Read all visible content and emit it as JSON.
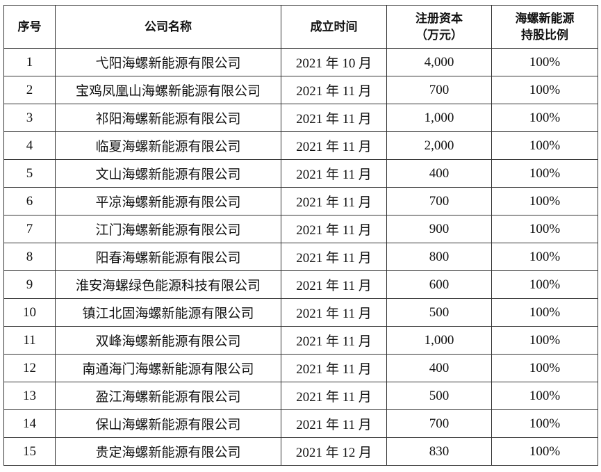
{
  "headers": [
    "序号",
    "公司名称",
    "成立时间",
    "注册资本\n（万元）",
    "海螺新能源\n持股比例"
  ],
  "rows": [
    [
      "1",
      "弋阳海螺新能源有限公司",
      "2021 年 10 月",
      "4,000",
      "100%"
    ],
    [
      "2",
      "宝鸡凤凰山海螺新能源有限公司",
      "2021 年 11 月",
      "700",
      "100%"
    ],
    [
      "3",
      "祁阳海螺新能源有限公司",
      "2021 年 11 月",
      "1,000",
      "100%"
    ],
    [
      "4",
      "临夏海螺新能源有限公司",
      "2021 年 11 月",
      "2,000",
      "100%"
    ],
    [
      "5",
      "文山海螺新能源有限公司",
      "2021 年 11 月",
      "400",
      "100%"
    ],
    [
      "6",
      "平凉海螺新能源有限公司",
      "2021 年 11 月",
      "700",
      "100%"
    ],
    [
      "7",
      "江门海螺新能源有限公司",
      "2021 年 11 月",
      "900",
      "100%"
    ],
    [
      "8",
      "阳春海螺新能源有限公司",
      "2021 年 11 月",
      "800",
      "100%"
    ],
    [
      "9",
      "淮安海螺绿色能源科技有限公司",
      "2021 年 11 月",
      "600",
      "100%"
    ],
    [
      "10",
      "镇江北固海螺新能源有限公司",
      "2021 年 11 月",
      "500",
      "100%"
    ],
    [
      "11",
      "双峰海螺新能源有限公司",
      "2021 年 11 月",
      "1,000",
      "100%"
    ],
    [
      "12",
      "南通海门海螺新能源有限公司",
      "2021 年 11 月",
      "400",
      "100%"
    ],
    [
      "13",
      "盈江海螺新能源有限公司",
      "2021 年 11 月",
      "500",
      "100%"
    ],
    [
      "14",
      "保山海螺新能源有限公司",
      "2021 年 11 月",
      "700",
      "100%"
    ],
    [
      "15",
      "贵定海螺新能源有限公司",
      "2021 年 12 月",
      "830",
      "100%"
    ]
  ]
}
